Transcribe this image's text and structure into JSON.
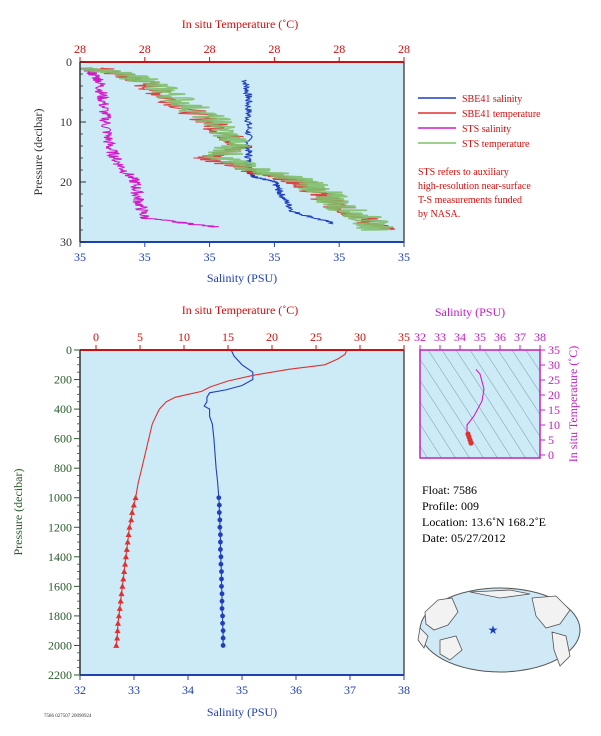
{
  "colors": {
    "panel_bg": "#cdebf7",
    "sbe_salinity": "#1f3fbf",
    "sbe_temperature": "#e03030",
    "sts_salinity": "#d21bc8",
    "sts_temperature": "#7fbf6a",
    "pressure_axis": "#333333",
    "salinity_axis": "#2040b0",
    "temperature_axis": "#d01010",
    "ts_axis": "#c020c0",
    "map_ocean": "#cfe9f7",
    "map_land": "#f2f2f2"
  },
  "top_panel": {
    "top_axis_title": "In situ Temperature (˚C)",
    "top_ticks": [
      "28",
      "28",
      "28",
      "28",
      "28",
      "28"
    ],
    "bottom_axis_title": "Salinity (PSU)",
    "bottom_ticks": [
      "35",
      "35",
      "35",
      "35",
      "35",
      "35"
    ],
    "left_axis_title": "Pressure (decibar)",
    "left_ticks": [
      "0",
      "10",
      "20",
      "30"
    ],
    "legend": [
      "SBE41 salinity",
      "SBE41 temperature",
      "STS salinity",
      "STS temperature"
    ],
    "note": [
      "STS refers to auxiliary",
      "high-resolution near-surface",
      "T-S measurements funded",
      "by NASA."
    ]
  },
  "main_panel": {
    "top_axis_title": "In situ Temperature (˚C)",
    "top_ticks": [
      "0",
      "5",
      "10",
      "15",
      "20",
      "25",
      "30",
      "35"
    ],
    "bottom_axis_title": "Salinity (PSU)",
    "bottom_ticks": [
      "32",
      "33",
      "34",
      "35",
      "36",
      "37",
      "38"
    ],
    "left_axis_title": "Pressure (decibar)",
    "left_ticks": [
      "0",
      "200",
      "400",
      "600",
      "800",
      "1000",
      "1200",
      "1400",
      "1600",
      "1800",
      "2000",
      "2200"
    ]
  },
  "ts_panel": {
    "top_axis_title": "Salinity (PSU)",
    "top_ticks": [
      "32",
      "33",
      "34",
      "35",
      "36",
      "37",
      "38"
    ],
    "right_axis_title": "In situ Temperature (˚C)",
    "right_ticks": [
      "0",
      "5",
      "10",
      "15",
      "20",
      "25",
      "30",
      "35"
    ]
  },
  "float_info": {
    "float": "Float:  7586",
    "profile": "Profile:  009",
    "location": "Location:  13.6˚N  168.2˚E",
    "date": "Date:  05/27/2012"
  },
  "footer_text": "7586 027507 20090924",
  "chart_data": [
    {
      "type": "line",
      "title": "",
      "xlabel": "Salinity (PSU)",
      "x2label": "In situ Temperature (˚C)",
      "ylabel": "Pressure (decibar)",
      "ylim": [
        30,
        0
      ],
      "series": [
        {
          "name": "SBE41 salinity",
          "pressure": [
            3,
            6,
            10,
            14,
            17,
            19,
            20,
            22,
            25,
            27
          ],
          "profile_position": [
            0.51,
            0.52,
            0.52,
            0.52,
            0.52,
            0.53,
            0.6,
            0.62,
            0.66,
            0.79
          ]
        },
        {
          "name": "SBE41 temperature",
          "pressure": [
            1,
            3,
            6,
            10,
            14,
            16,
            18,
            20,
            22,
            24,
            26,
            28
          ],
          "profile_position": [
            0.05,
            0.18,
            0.27,
            0.4,
            0.5,
            0.4,
            0.52,
            0.68,
            0.74,
            0.79,
            0.87,
            0.94
          ]
        },
        {
          "name": "STS salinity",
          "pressure": [
            1,
            3,
            6,
            10,
            14,
            17,
            20,
            23,
            26,
            27.5
          ],
          "profile_position": [
            0.02,
            0.06,
            0.07,
            0.08,
            0.09,
            0.12,
            0.17,
            0.18,
            0.2,
            0.42
          ]
        },
        {
          "name": "STS temperature",
          "pressure": [
            1,
            3,
            6,
            10,
            14,
            16,
            18,
            20,
            22,
            24,
            26,
            28
          ],
          "profile_position": [
            0.04,
            0.2,
            0.3,
            0.42,
            0.48,
            0.43,
            0.55,
            0.7,
            0.76,
            0.8,
            0.88,
            0.92
          ]
        }
      ]
    },
    {
      "type": "line",
      "title": "",
      "xlabel": "Salinity (PSU)",
      "x2label": "In situ Temperature (˚C)",
      "ylabel": "Pressure (decibar)",
      "xlim_salinity": [
        32,
        38
      ],
      "xlim_temperature": [
        0,
        35
      ],
      "ylim": [
        2200,
        0
      ],
      "series": [
        {
          "name": "Salinity",
          "x_axis": "salinity",
          "points": [
            [
              34.8,
              0
            ],
            [
              34.85,
              40
            ],
            [
              35.0,
              100
            ],
            [
              35.2,
              150
            ],
            [
              35.2,
              200
            ],
            [
              35.0,
              240
            ],
            [
              34.7,
              270
            ],
            [
              34.4,
              290
            ],
            [
              34.35,
              320
            ],
            [
              34.35,
              350
            ],
            [
              34.3,
              380
            ],
            [
              34.4,
              400
            ],
            [
              34.4,
              450
            ],
            [
              34.45,
              500
            ],
            [
              34.48,
              600
            ],
            [
              34.5,
              700
            ],
            [
              34.52,
              800
            ],
            [
              34.55,
              900
            ],
            [
              34.57,
              1000
            ],
            [
              34.58,
              1050
            ],
            [
              34.58,
              1100
            ],
            [
              34.59,
              1150
            ],
            [
              34.59,
              1200
            ],
            [
              34.6,
              1250
            ],
            [
              34.6,
              1300
            ],
            [
              34.6,
              1350
            ],
            [
              34.61,
              1400
            ],
            [
              34.61,
              1450
            ],
            [
              34.62,
              1500
            ],
            [
              34.62,
              1550
            ],
            [
              34.62,
              1600
            ],
            [
              34.63,
              1650
            ],
            [
              34.63,
              1700
            ],
            [
              34.63,
              1750
            ],
            [
              34.64,
              1800
            ],
            [
              34.64,
              1850
            ],
            [
              34.65,
              1900
            ],
            [
              34.65,
              1950
            ],
            [
              34.65,
              2000
            ]
          ]
        },
        {
          "name": "Temperature",
          "x_axis": "temperature",
          "points": [
            [
              28.5,
              0
            ],
            [
              28.3,
              30
            ],
            [
              27.5,
              60
            ],
            [
              26.0,
              100
            ],
            [
              22.0,
              130
            ],
            [
              18.0,
              170
            ],
            [
              15.0,
              210
            ],
            [
              13.0,
              250
            ],
            [
              12.0,
              280
            ],
            [
              10.5,
              300
            ],
            [
              9.0,
              320
            ],
            [
              8.0,
              350
            ],
            [
              7.2,
              400
            ],
            [
              6.8,
              450
            ],
            [
              6.4,
              500
            ],
            [
              6.0,
              600
            ],
            [
              5.6,
              700
            ],
            [
              5.2,
              800
            ],
            [
              4.8,
              900
            ],
            [
              4.5,
              1000
            ],
            [
              4.3,
              1050
            ],
            [
              4.1,
              1100
            ],
            [
              4.0,
              1150
            ],
            [
              3.8,
              1200
            ],
            [
              3.7,
              1250
            ],
            [
              3.6,
              1300
            ],
            [
              3.5,
              1350
            ],
            [
              3.4,
              1400
            ],
            [
              3.3,
              1450
            ],
            [
              3.2,
              1500
            ],
            [
              3.1,
              1550
            ],
            [
              3.0,
              1600
            ],
            [
              2.9,
              1650
            ],
            [
              2.8,
              1700
            ],
            [
              2.7,
              1750
            ],
            [
              2.6,
              1800
            ],
            [
              2.5,
              1850
            ],
            [
              2.45,
              1900
            ],
            [
              2.4,
              1950
            ],
            [
              2.3,
              2000
            ]
          ]
        }
      ]
    },
    {
      "type": "line",
      "title": "",
      "xlabel": "Salinity (PSU)",
      "ylabel": "In situ Temperature (˚C)",
      "xlim": [
        32,
        38
      ],
      "ylim": [
        -1,
        35
      ],
      "series": [
        {
          "name": "T-S",
          "points": [
            [
              34.8,
              28.5
            ],
            [
              35.0,
              27.0
            ],
            [
              35.2,
              22.0
            ],
            [
              35.1,
              18.0
            ],
            [
              34.7,
              13.0
            ],
            [
              34.35,
              10.0
            ],
            [
              34.35,
              8.0
            ],
            [
              34.4,
              7.0
            ],
            [
              34.45,
              6.0
            ],
            [
              34.5,
              5.0
            ],
            [
              34.55,
              4.0
            ]
          ]
        }
      ]
    }
  ]
}
